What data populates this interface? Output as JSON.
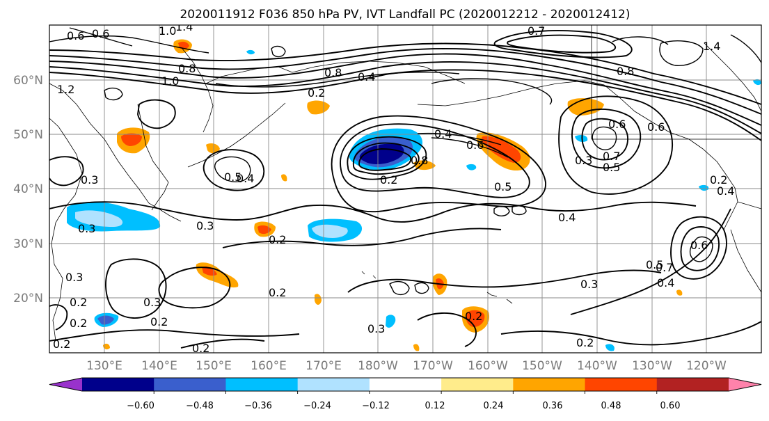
{
  "title": "2020011912 F036 850 hPa PV, IVT Landfall PC (2020012212 - 2020012412)",
  "lat_labels": [
    "60°N",
    "50°N",
    "40°N",
    "30°N",
    "20°N"
  ],
  "lon_labels": [
    "130°E",
    "140°E",
    "150°E",
    "160°E",
    "170°E",
    "180°W",
    "170°W",
    "160°W",
    "150°W",
    "140°W",
    "130°W",
    "120°W"
  ],
  "colorbar": {
    "colors": [
      "#9932cc",
      "#00008b",
      "#3a5fcd",
      "#00bfff",
      "#b0e2ff",
      "#ffffff",
      "#ffec8b",
      "#ffa500",
      "#ff4500",
      "#b22222",
      "#ff82ab"
    ],
    "tick_labels": [
      "−0.60",
      "−0.48",
      "−0.36",
      "−0.24",
      "−0.12",
      "0.12",
      "0.24",
      "0.36",
      "0.48",
      "0.60"
    ]
  },
  "contour_labels": [
    "0.6",
    "0.6",
    "1.4",
    "0.7",
    "1.4",
    "1.0",
    "0.8",
    "1.2",
    "1.0",
    "0.2",
    "0.4",
    "0.8",
    "0.8",
    "0.4",
    "0.6",
    "0.5",
    "0.5",
    "0.6",
    "0.7",
    "0.5",
    "0.3",
    "0.4",
    "0.2",
    "0.3",
    "0.4",
    "0.3",
    "0.3",
    "0.2",
    "0.3",
    "0.2",
    "0.2",
    "0.2",
    "0.2",
    "0.2",
    "0.3",
    "0.6",
    "0.5",
    "0.7",
    "0.4",
    "0.3",
    "0.2",
    "0.4",
    "0.2",
    "0.2",
    "0.3",
    "0.2",
    "0.6",
    "0.8"
  ]
}
